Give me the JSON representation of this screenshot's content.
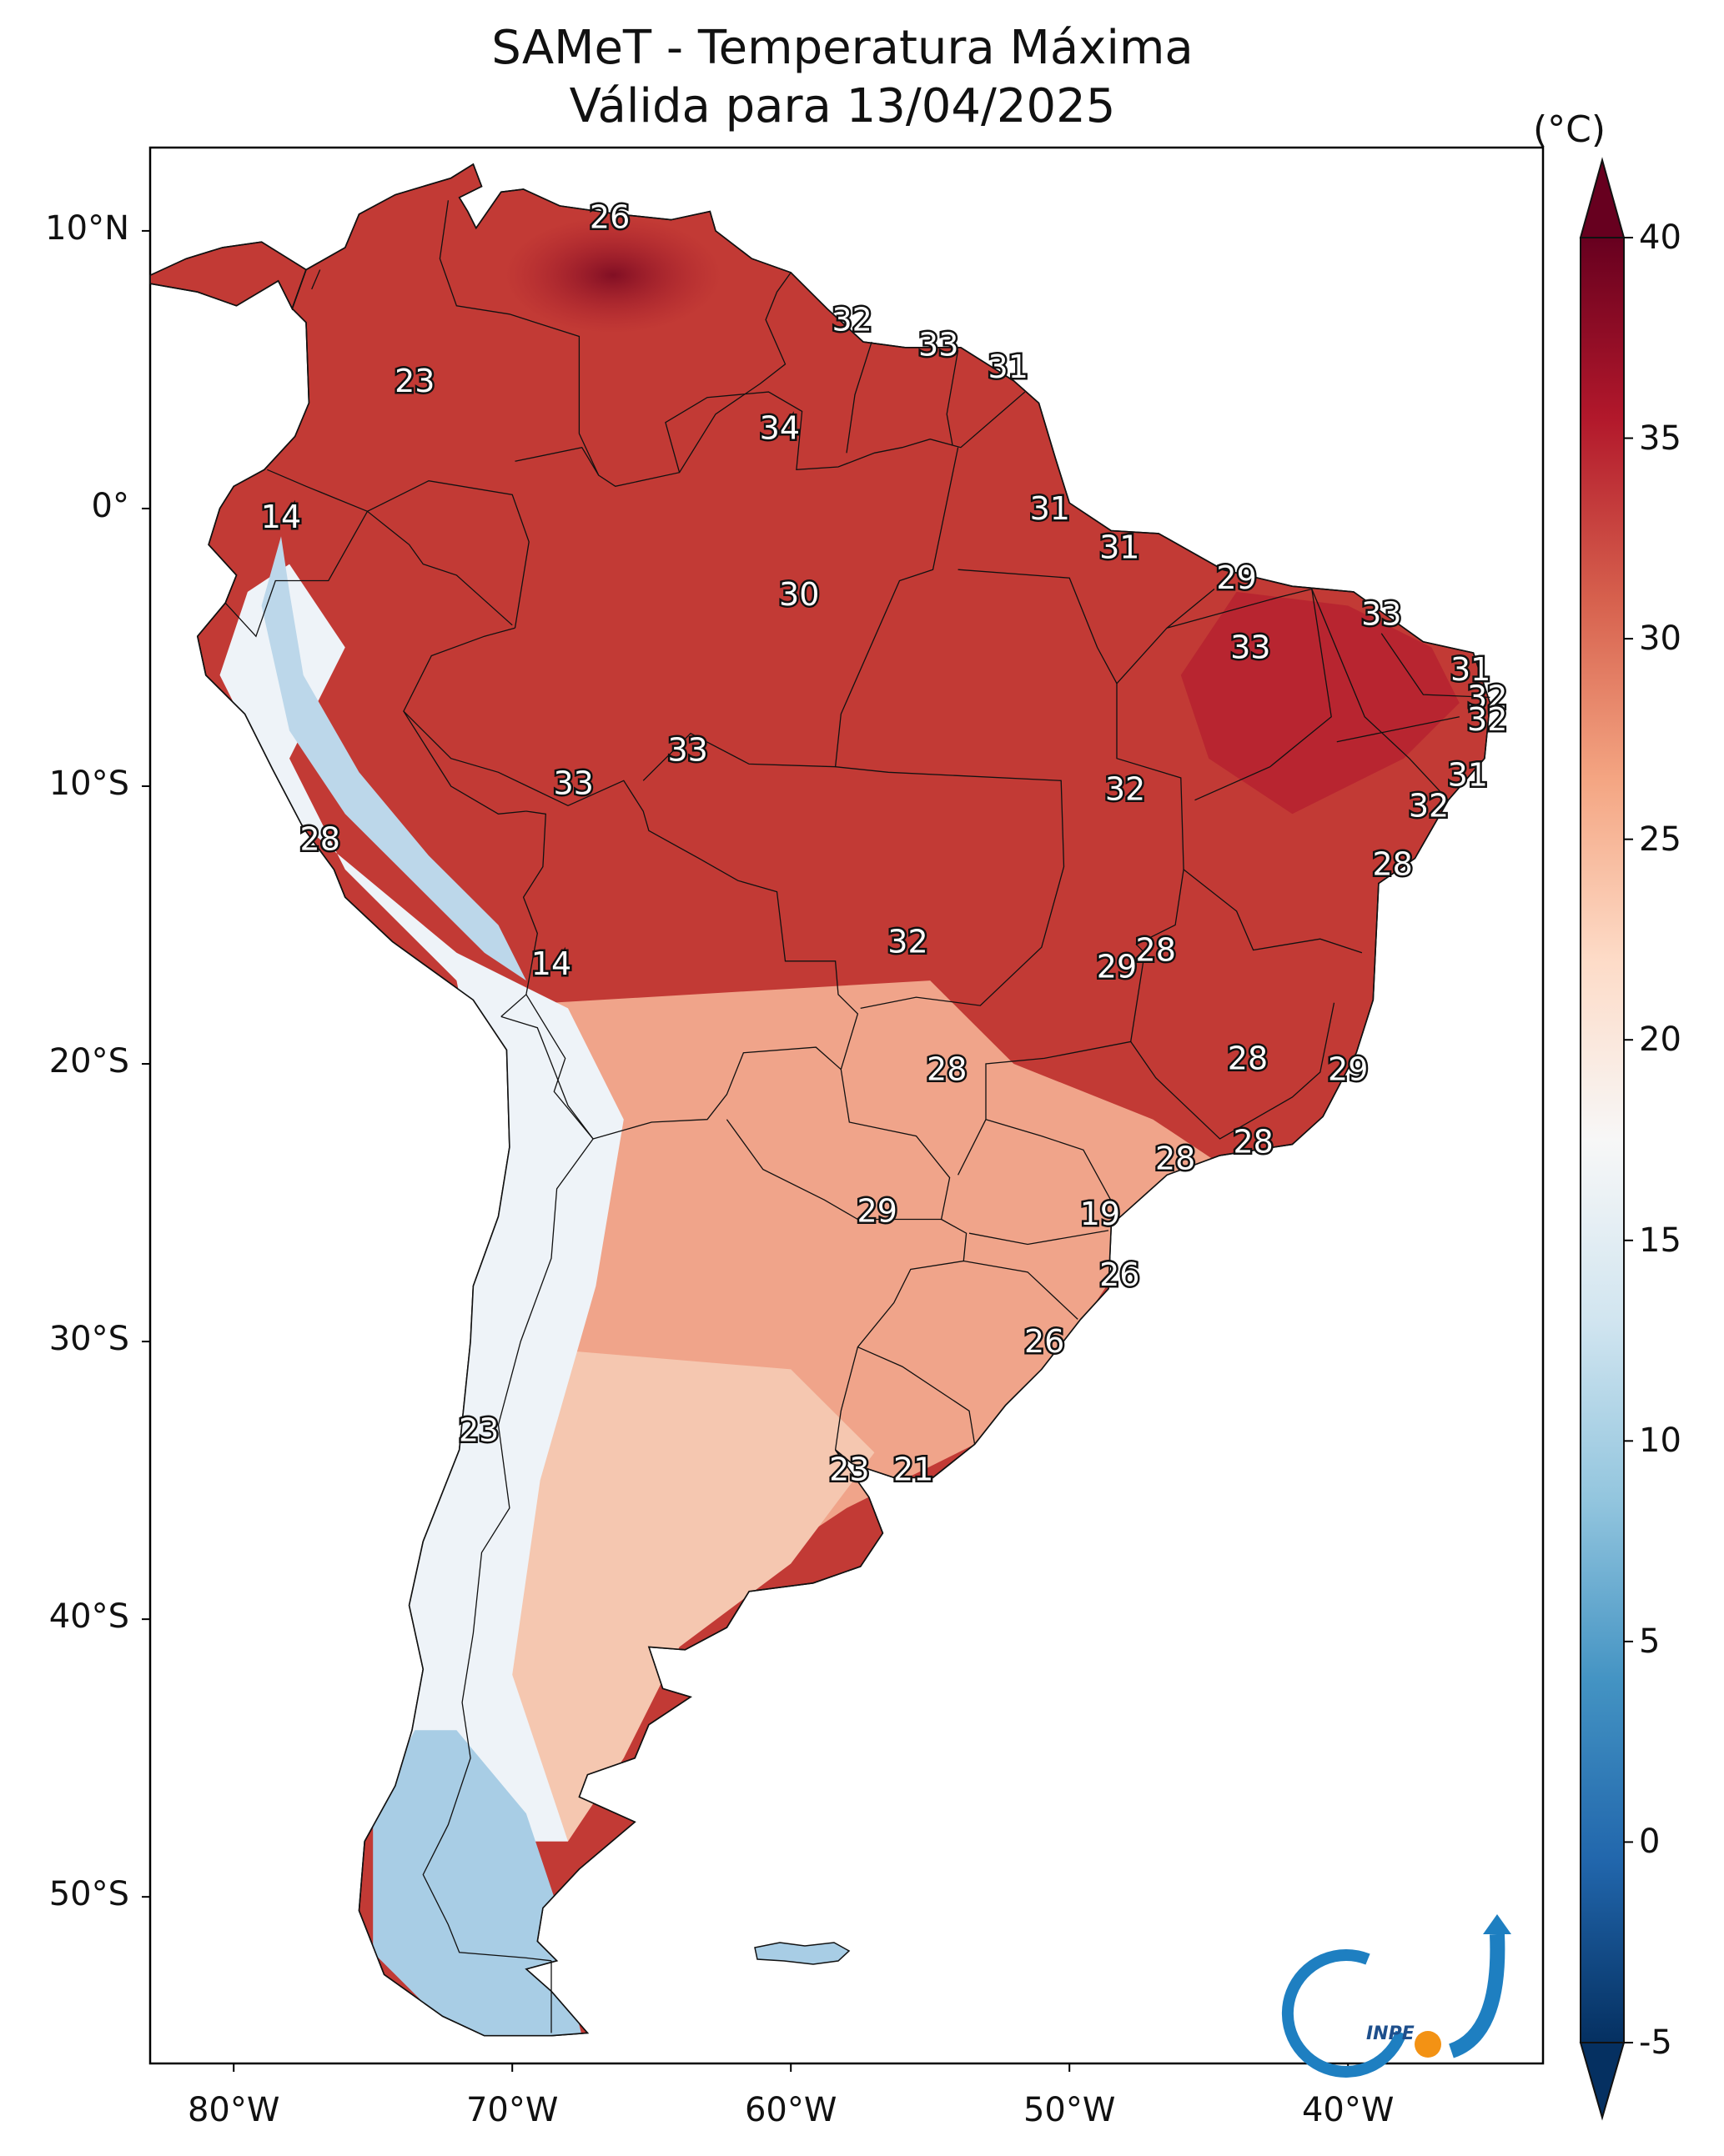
{
  "title": {
    "line1": "SAMeT - Temperatura Máxima",
    "line2": "Válida para 13/04/2025"
  },
  "map": {
    "region": "South America",
    "lon_range": [
      -83,
      -33
    ],
    "lat_range": [
      -56,
      13
    ],
    "lat_ticks": [
      {
        "value": 10,
        "label": "10°N"
      },
      {
        "value": 0,
        "label": "0°"
      },
      {
        "value": -10,
        "label": "10°S"
      },
      {
        "value": -20,
        "label": "20°S"
      },
      {
        "value": -30,
        "label": "30°S"
      },
      {
        "value": -40,
        "label": "40°S"
      },
      {
        "value": -50,
        "label": "50°S"
      }
    ],
    "lon_ticks": [
      {
        "value": -80,
        "label": "80°W"
      },
      {
        "value": -70,
        "label": "70°W"
      },
      {
        "value": -60,
        "label": "60°W"
      },
      {
        "value": -50,
        "label": "50°W"
      },
      {
        "value": -40,
        "label": "40°W"
      }
    ],
    "point_labels": [
      {
        "lon": -66.5,
        "lat": 10.5,
        "value": "26"
      },
      {
        "lon": -73.5,
        "lat": 4.6,
        "value": "23"
      },
      {
        "lon": -57.8,
        "lat": 6.8,
        "value": "32"
      },
      {
        "lon": -54.7,
        "lat": 5.9,
        "value": "33"
      },
      {
        "lon": -52.2,
        "lat": 5.1,
        "value": "31"
      },
      {
        "lon": -60.4,
        "lat": 2.9,
        "value": "34"
      },
      {
        "lon": -78.3,
        "lat": -0.3,
        "value": "14"
      },
      {
        "lon": -50.7,
        "lat": 0.0,
        "value": "31"
      },
      {
        "lon": -48.2,
        "lat": -1.4,
        "value": "31"
      },
      {
        "lon": -44.0,
        "lat": -2.5,
        "value": "29"
      },
      {
        "lon": -59.7,
        "lat": -3.1,
        "value": "30"
      },
      {
        "lon": -38.8,
        "lat": -3.8,
        "value": "33"
      },
      {
        "lon": -43.5,
        "lat": -5.0,
        "value": "33"
      },
      {
        "lon": -35.6,
        "lat": -5.8,
        "value": "31"
      },
      {
        "lon": -35.0,
        "lat": -6.8,
        "value": "32"
      },
      {
        "lon": -35.0,
        "lat": -7.6,
        "value": "32"
      },
      {
        "lon": -63.7,
        "lat": -8.7,
        "value": "33"
      },
      {
        "lon": -67.8,
        "lat": -9.9,
        "value": "33"
      },
      {
        "lon": -35.7,
        "lat": -9.6,
        "value": "31"
      },
      {
        "lon": -48.0,
        "lat": -10.1,
        "value": "32"
      },
      {
        "lon": -37.1,
        "lat": -10.7,
        "value": "32"
      },
      {
        "lon": -76.9,
        "lat": -11.9,
        "value": "28"
      },
      {
        "lon": -38.4,
        "lat": -12.8,
        "value": "28"
      },
      {
        "lon": -55.8,
        "lat": -15.6,
        "value": "32"
      },
      {
        "lon": -46.9,
        "lat": -15.9,
        "value": "28"
      },
      {
        "lon": -48.3,
        "lat": -16.5,
        "value": "29"
      },
      {
        "lon": -68.6,
        "lat": -16.4,
        "value": "14"
      },
      {
        "lon": -54.4,
        "lat": -20.2,
        "value": "28"
      },
      {
        "lon": -43.6,
        "lat": -19.8,
        "value": "28"
      },
      {
        "lon": -40.0,
        "lat": -20.2,
        "value": "29"
      },
      {
        "lon": -46.2,
        "lat": -23.4,
        "value": "28"
      },
      {
        "lon": -43.4,
        "lat": -22.8,
        "value": "28"
      },
      {
        "lon": -56.9,
        "lat": -25.3,
        "value": "29"
      },
      {
        "lon": -48.9,
        "lat": -25.4,
        "value": "19"
      },
      {
        "lon": -48.2,
        "lat": -27.6,
        "value": "26"
      },
      {
        "lon": -50.9,
        "lat": -30.0,
        "value": "26"
      },
      {
        "lon": -71.2,
        "lat": -33.2,
        "value": "23"
      },
      {
        "lon": -57.9,
        "lat": -34.6,
        "value": "23"
      },
      {
        "lon": -55.6,
        "lat": -34.6,
        "value": "21"
      }
    ]
  },
  "colorbar": {
    "unit": "(°C)",
    "min": -5,
    "max": 40,
    "ticks": [
      {
        "value": 40,
        "label": "40"
      },
      {
        "value": 35,
        "label": "35"
      },
      {
        "value": 30,
        "label": "30"
      },
      {
        "value": 25,
        "label": "25"
      },
      {
        "value": 20,
        "label": "20"
      },
      {
        "value": 15,
        "label": "15"
      },
      {
        "value": 10,
        "label": "10"
      },
      {
        "value": 5,
        "label": "5"
      },
      {
        "value": 0,
        "label": "0"
      },
      {
        "value": -5,
        "label": "-5"
      }
    ],
    "colors": [
      "#053061",
      "#2166ac",
      "#4393c3",
      "#92c5de",
      "#d1e5f0",
      "#f7f7f7",
      "#fddbc7",
      "#f4a582",
      "#d6604d",
      "#b2182b",
      "#67001f"
    ]
  },
  "logo": {
    "text": "INPE"
  }
}
